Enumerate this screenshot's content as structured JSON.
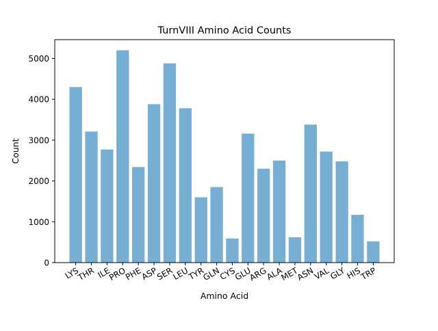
{
  "chart_data": {
    "type": "bar",
    "title": "TurnVIII Amino Acid Counts",
    "xlabel": "Amino Acid",
    "ylabel": "Count",
    "categories": [
      "LYS",
      "THR",
      "ILE",
      "PRO",
      "PHE",
      "ASP",
      "SER",
      "LEU",
      "TYR",
      "GLN",
      "CYS",
      "GLU",
      "ARG",
      "ALA",
      "MET",
      "ASN",
      "VAL",
      "GLY",
      "HIS",
      "TRP"
    ],
    "values": [
      4300,
      3210,
      2770,
      5200,
      2340,
      3880,
      4880,
      3780,
      1600,
      1850,
      590,
      3160,
      2300,
      2500,
      620,
      3380,
      2720,
      2480,
      1170,
      520
    ],
    "ylim": [
      0,
      5460
    ],
    "yticks": [
      0,
      1000,
      2000,
      3000,
      4000,
      5000
    ],
    "bar_color": "#77aed3",
    "grid": false
  }
}
